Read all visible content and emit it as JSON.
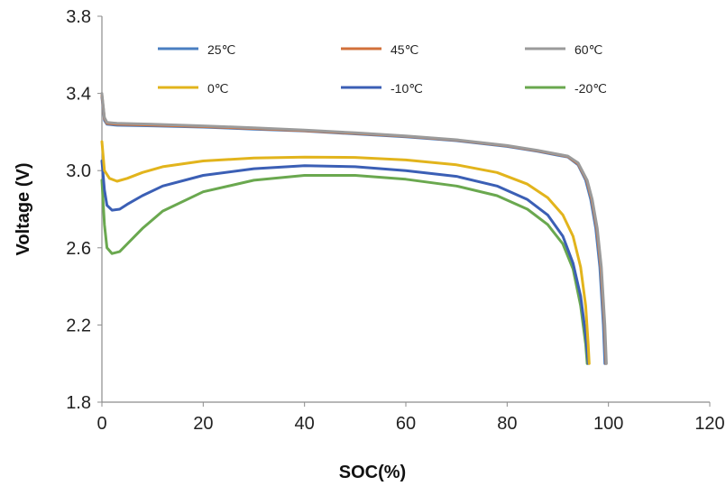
{
  "chart_data": {
    "type": "line",
    "title": "",
    "xlabel": "SOC(%)",
    "ylabel": "Voltage (V)",
    "xlim": [
      0,
      120
    ],
    "ylim": [
      1.8,
      3.8
    ],
    "xticks": [
      "0",
      "20",
      "40",
      "60",
      "80",
      "100",
      "120"
    ],
    "yticks": [
      "1.8",
      "2.2",
      "2.6",
      "3.0",
      "3.4",
      "3.8"
    ],
    "grid": false,
    "legend_position": "top",
    "series": [
      {
        "name": "25℃",
        "color": "#4a7fc1",
        "points": [
          [
            0,
            3.38
          ],
          [
            0.5,
            3.26
          ],
          [
            1,
            3.24
          ],
          [
            3,
            3.235
          ],
          [
            10,
            3.232
          ],
          [
            20,
            3.225
          ],
          [
            30,
            3.215
          ],
          [
            40,
            3.205
          ],
          [
            50,
            3.19
          ],
          [
            60,
            3.175
          ],
          [
            70,
            3.155
          ],
          [
            80,
            3.125
          ],
          [
            86,
            3.1
          ],
          [
            90,
            3.08
          ],
          [
            92,
            3.07
          ],
          [
            94,
            3.03
          ],
          [
            95.5,
            2.95
          ],
          [
            96.5,
            2.85
          ],
          [
            97.5,
            2.7
          ],
          [
            98.3,
            2.5
          ],
          [
            99,
            2.2
          ],
          [
            99.3,
            2.0
          ]
        ]
      },
      {
        "name": "45℃",
        "color": "#d2703a",
        "points": [
          [
            0,
            3.39
          ],
          [
            0.5,
            3.27
          ],
          [
            1,
            3.245
          ],
          [
            3,
            3.24
          ],
          [
            10,
            3.236
          ],
          [
            20,
            3.228
          ],
          [
            30,
            3.218
          ],
          [
            40,
            3.207
          ],
          [
            50,
            3.193
          ],
          [
            60,
            3.178
          ],
          [
            70,
            3.158
          ],
          [
            80,
            3.128
          ],
          [
            86,
            3.103
          ],
          [
            90,
            3.083
          ],
          [
            92,
            3.073
          ],
          [
            94,
            3.035
          ],
          [
            95.7,
            2.95
          ],
          [
            96.7,
            2.85
          ],
          [
            97.7,
            2.7
          ],
          [
            98.5,
            2.5
          ],
          [
            99.2,
            2.2
          ],
          [
            99.5,
            2.0
          ]
        ]
      },
      {
        "name": "60℃",
        "color": "#9b9b9b",
        "points": [
          [
            0,
            3.4
          ],
          [
            0.5,
            3.275
          ],
          [
            1,
            3.25
          ],
          [
            3,
            3.245
          ],
          [
            10,
            3.24
          ],
          [
            20,
            3.232
          ],
          [
            30,
            3.222
          ],
          [
            40,
            3.21
          ],
          [
            50,
            3.196
          ],
          [
            60,
            3.18
          ],
          [
            70,
            3.16
          ],
          [
            80,
            3.13
          ],
          [
            86,
            3.105
          ],
          [
            90,
            3.085
          ],
          [
            92,
            3.075
          ],
          [
            94,
            3.04
          ],
          [
            95.8,
            2.95
          ],
          [
            96.8,
            2.85
          ],
          [
            97.8,
            2.7
          ],
          [
            98.6,
            2.5
          ],
          [
            99.3,
            2.2
          ],
          [
            99.6,
            2.0
          ]
        ]
      },
      {
        "name": "0℃",
        "color": "#e2b41c",
        "points": [
          [
            0,
            3.15
          ],
          [
            0.5,
            3.0
          ],
          [
            1.5,
            2.96
          ],
          [
            3,
            2.945
          ],
          [
            5,
            2.96
          ],
          [
            8,
            2.99
          ],
          [
            12,
            3.02
          ],
          [
            20,
            3.05
          ],
          [
            30,
            3.065
          ],
          [
            40,
            3.07
          ],
          [
            50,
            3.068
          ],
          [
            60,
            3.055
          ],
          [
            70,
            3.03
          ],
          [
            78,
            2.99
          ],
          [
            84,
            2.93
          ],
          [
            88,
            2.86
          ],
          [
            91,
            2.77
          ],
          [
            93,
            2.66
          ],
          [
            94.5,
            2.5
          ],
          [
            95.5,
            2.3
          ],
          [
            96,
            2.1
          ],
          [
            96.2,
            2.0
          ]
        ]
      },
      {
        "name": "-10℃",
        "color": "#3b5fb5",
        "points": [
          [
            0,
            3.05
          ],
          [
            0.5,
            2.9
          ],
          [
            1,
            2.82
          ],
          [
            2,
            2.795
          ],
          [
            3.5,
            2.8
          ],
          [
            5,
            2.825
          ],
          [
            8,
            2.87
          ],
          [
            12,
            2.92
          ],
          [
            20,
            2.975
          ],
          [
            30,
            3.01
          ],
          [
            40,
            3.025
          ],
          [
            50,
            3.02
          ],
          [
            60,
            3.0
          ],
          [
            70,
            2.97
          ],
          [
            78,
            2.92
          ],
          [
            84,
            2.85
          ],
          [
            88,
            2.77
          ],
          [
            91,
            2.66
          ],
          [
            93,
            2.52
          ],
          [
            94.5,
            2.35
          ],
          [
            95.5,
            2.15
          ],
          [
            96,
            2.0
          ]
        ]
      },
      {
        "name": "-20℃",
        "color": "#6aa84f",
        "points": [
          [
            0,
            2.95
          ],
          [
            0.5,
            2.72
          ],
          [
            1,
            2.6
          ],
          [
            2,
            2.57
          ],
          [
            3.5,
            2.58
          ],
          [
            5,
            2.62
          ],
          [
            8,
            2.7
          ],
          [
            12,
            2.79
          ],
          [
            20,
            2.89
          ],
          [
            30,
            2.95
          ],
          [
            40,
            2.975
          ],
          [
            50,
            2.975
          ],
          [
            60,
            2.955
          ],
          [
            70,
            2.92
          ],
          [
            78,
            2.87
          ],
          [
            84,
            2.8
          ],
          [
            88,
            2.72
          ],
          [
            91,
            2.62
          ],
          [
            93,
            2.49
          ],
          [
            94.5,
            2.3
          ],
          [
            95.5,
            2.1
          ],
          [
            95.8,
            2.0
          ]
        ]
      }
    ]
  }
}
